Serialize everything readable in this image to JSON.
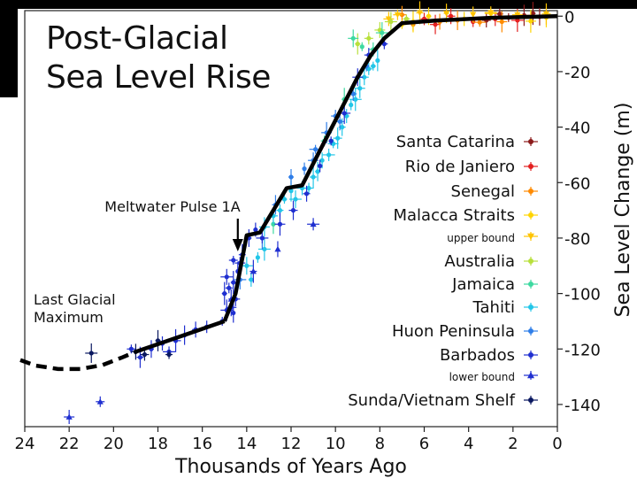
{
  "chart_data": {
    "type": "scatter",
    "title_lines": [
      "Post-Glacial",
      "Sea Level Rise"
    ],
    "xlabel": "Thousands of Years Ago",
    "ylabel": "Sea Level Change (m)",
    "xlim": [
      24,
      0
    ],
    "ylim": [
      -148,
      2
    ],
    "x_ticks": [
      24,
      22,
      20,
      18,
      16,
      14,
      12,
      10,
      8,
      6,
      4,
      2,
      0
    ],
    "y_ticks": [
      0,
      -20,
      -40,
      -60,
      -80,
      -100,
      -120,
      -140
    ],
    "grid": false,
    "legend_position": "right",
    "annotations": [
      {
        "id": "mwp",
        "text": "Meltwater Pulse 1A",
        "x": 14.4,
        "y": -79
      },
      {
        "id": "lgm_line1",
        "text": "Last Glacial"
      },
      {
        "id": "lgm_line2",
        "text": "Maximum"
      }
    ],
    "trend_line": {
      "name": "Sea level curve",
      "solid": [
        [
          15,
          -110
        ],
        [
          14.5,
          -100
        ],
        [
          14,
          -79
        ],
        [
          13.4,
          -78
        ],
        [
          12.2,
          -62
        ],
        [
          11.5,
          -61
        ],
        [
          10.8,
          -50
        ],
        [
          9.9,
          -36
        ],
        [
          9,
          -22
        ],
        [
          8.4,
          -14
        ],
        [
          7.8,
          -8
        ],
        [
          7,
          -2.5
        ],
        [
          5.5,
          -1.6
        ],
        [
          3,
          -0.6
        ],
        [
          0,
          0
        ]
      ],
      "dashed": [
        [
          24.2,
          -124
        ],
        [
          23.5,
          -126
        ],
        [
          22.5,
          -127.2
        ],
        [
          21.5,
          -127.2
        ],
        [
          20.5,
          -125.8
        ],
        [
          19.6,
          -123
        ],
        [
          19,
          -121
        ]
      ]
    },
    "series": [
      {
        "name": "Santa Catarina",
        "color": "#8b1a1a",
        "marker": "circle",
        "points": [
          [
            2.2,
            -0.5
          ],
          [
            1.5,
            0.3
          ],
          [
            0.8,
            -0.2
          ],
          [
            3.2,
            -1.5
          ],
          [
            2.6,
            0.8
          ],
          [
            1.1,
            1
          ]
        ]
      },
      {
        "name": "Rio de Janiero",
        "color": "#e32020",
        "marker": "circle",
        "points": [
          [
            2.8,
            -1
          ],
          [
            3.8,
            -2
          ],
          [
            1.8,
            -1.5
          ],
          [
            5.5,
            -3
          ],
          [
            4.8,
            0
          ],
          [
            6,
            -1
          ]
        ]
      },
      {
        "name": "Senegal",
        "color": "#ff8a00",
        "marker": "circle",
        "points": [
          [
            4.5,
            -1.5
          ],
          [
            5.3,
            -2
          ],
          [
            6.5,
            -3
          ],
          [
            3.5,
            -2.2
          ],
          [
            2.5,
            -2
          ],
          [
            7,
            0.5
          ]
        ]
      },
      {
        "name": "Malacca Straits",
        "color": "#ffd400",
        "marker": "circle",
        "points": [
          [
            7,
            -3
          ],
          [
            6.5,
            -2
          ],
          [
            5.8,
            0
          ],
          [
            4.2,
            -1
          ],
          [
            3,
            1
          ],
          [
            1.2,
            -1.8
          ],
          [
            0.5,
            -0.5
          ]
        ]
      },
      {
        "name": "upper bound",
        "color": "#ffc400",
        "marker": "triangle-down",
        "points": [
          [
            7.6,
            -1
          ],
          [
            7.2,
            0.5
          ],
          [
            6.2,
            1.2
          ],
          [
            5,
            1
          ],
          [
            3.8,
            0.6
          ],
          [
            3,
            1.3
          ],
          [
            1.8,
            0.5
          ],
          [
            0.5,
            0.8
          ]
        ]
      },
      {
        "name": "Australia",
        "color": "#b8e03c",
        "marker": "circle",
        "points": [
          [
            7.5,
            -2
          ],
          [
            8,
            -5
          ],
          [
            8.5,
            -8
          ],
          [
            6.8,
            -1
          ],
          [
            9,
            -10
          ]
        ]
      },
      {
        "name": "Jamaica",
        "color": "#3dd9a0",
        "marker": "circle",
        "points": [
          [
            8.8,
            -11
          ],
          [
            7.9,
            -6
          ],
          [
            9.2,
            -8
          ],
          [
            8.3,
            -12
          ],
          [
            10.5,
            -45
          ],
          [
            9.6,
            -30
          ],
          [
            12.8,
            -75
          ]
        ]
      },
      {
        "name": "Tahiti",
        "color": "#22c6e8",
        "marker": "circle",
        "points": [
          [
            13.8,
            -95
          ],
          [
            13.5,
            -87
          ],
          [
            13.2,
            -84
          ],
          [
            13.2,
            -76
          ],
          [
            12.8,
            -72
          ],
          [
            12.5,
            -70
          ],
          [
            12.3,
            -66
          ],
          [
            12,
            -63
          ],
          [
            11.8,
            -66
          ],
          [
            11.5,
            -62
          ],
          [
            11.2,
            -62
          ],
          [
            11,
            -58
          ],
          [
            10.8,
            -56
          ],
          [
            10.6,
            -52
          ],
          [
            10.3,
            -50
          ],
          [
            10.1,
            -46
          ],
          [
            9.9,
            -44
          ],
          [
            9.7,
            -40
          ],
          [
            9.5,
            -36
          ],
          [
            9.3,
            -32
          ],
          [
            9.1,
            -30
          ],
          [
            8.9,
            -26
          ],
          [
            8.7,
            -22
          ],
          [
            8.5,
            -19
          ],
          [
            8.3,
            -18
          ],
          [
            8.1,
            -16
          ],
          [
            14,
            -90
          ]
        ]
      },
      {
        "name": "Huon Peninsula",
        "color": "#2f7ee8",
        "marker": "circle",
        "points": [
          [
            12.7,
            -68
          ],
          [
            12,
            -58
          ],
          [
            11.4,
            -55
          ],
          [
            10.9,
            -48
          ],
          [
            10.4,
            -42
          ],
          [
            9.8,
            -38
          ],
          [
            9.2,
            -28
          ],
          [
            8.6,
            -18
          ],
          [
            13.3,
            -80
          ],
          [
            14.3,
            -95
          ],
          [
            11,
            -52
          ],
          [
            10,
            -36
          ]
        ]
      },
      {
        "name": "Barbados",
        "color": "#1f2fd0",
        "marker": "circle",
        "points": [
          [
            19.2,
            -120
          ],
          [
            18.8,
            -123
          ],
          [
            18.3,
            -120
          ],
          [
            17.8,
            -118
          ],
          [
            17.5,
            -121
          ],
          [
            17.2,
            -117
          ],
          [
            16.8,
            -115
          ],
          [
            16.3,
            -113
          ],
          [
            15.8,
            -112
          ],
          [
            15.1,
            -110
          ],
          [
            14.9,
            -106
          ],
          [
            14.7,
            -105
          ],
          [
            14.5,
            -102
          ],
          [
            14.8,
            -98
          ],
          [
            14.6,
            -96
          ],
          [
            14.4,
            -92
          ],
          [
            14.9,
            -94
          ],
          [
            14.3,
            -89
          ],
          [
            14.6,
            -88
          ],
          [
            14.2,
            -86
          ],
          [
            13.9,
            -80
          ],
          [
            13.6,
            -77
          ],
          [
            13.3,
            -80
          ],
          [
            12.5,
            -75
          ],
          [
            11.9,
            -70
          ],
          [
            11.3,
            -64
          ],
          [
            10.7,
            -54
          ],
          [
            10.2,
            -45
          ],
          [
            9.6,
            -35
          ],
          [
            9,
            -22
          ],
          [
            8.5,
            -14
          ],
          [
            7.8,
            -10
          ],
          [
            15,
            -100
          ],
          [
            14.6,
            -107
          ]
        ]
      },
      {
        "name": "lower bound",
        "color": "#1f2fd0",
        "marker": "triangle-up",
        "points": [
          [
            22,
            -144.5
          ],
          [
            20.6,
            -139
          ],
          [
            13.7,
            -92
          ],
          [
            14.7,
            -102
          ],
          [
            12.6,
            -84
          ],
          [
            11,
            -75
          ]
        ]
      },
      {
        "name": "Sunda/Vietnam Shelf",
        "color": "#0a1860",
        "marker": "circle",
        "points": [
          [
            21,
            -121.5
          ],
          [
            19,
            -121
          ],
          [
            18.6,
            -122
          ],
          [
            17.5,
            -122
          ],
          [
            18,
            -117
          ]
        ]
      }
    ]
  }
}
